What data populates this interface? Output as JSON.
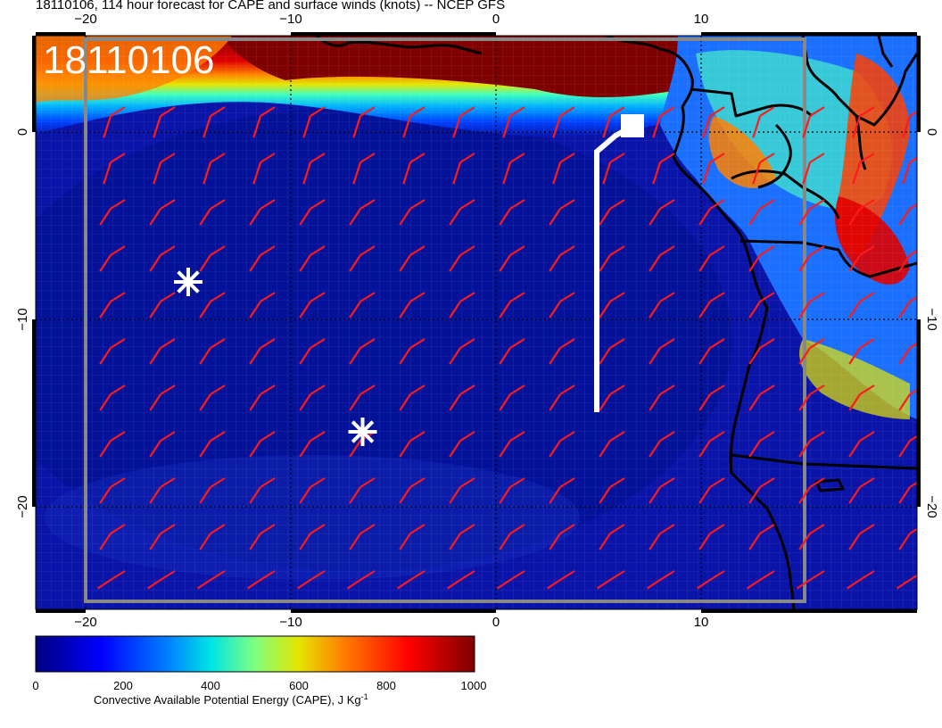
{
  "title": "18110106, 114 hour forecast for CAPE and surface winds (knots) -- NCEP GFS",
  "map_label": "18110106",
  "axes": {
    "lon_ticks_top": [
      "−20",
      "−10",
      "0",
      "10"
    ],
    "lon_ticks_bottom": [
      "−20",
      "−10",
      "0",
      "10"
    ],
    "lat_ticks_left": [
      "0",
      "−10",
      "−20"
    ],
    "lat_ticks_right": [
      "0",
      "−10",
      "−20"
    ]
  },
  "colorbar": {
    "ticks": [
      "0",
      "200",
      "400",
      "600",
      "800",
      "1000"
    ],
    "title": "Convective Available Potential Energy (CAPE), J Kg",
    "title_sup": "-1",
    "colors": [
      "#00007f",
      "#0000ff",
      "#007fff",
      "#00e5e5",
      "#7fff7f",
      "#e5e500",
      "#ff7f00",
      "#ff0000",
      "#7f0000"
    ]
  },
  "colors": {
    "ocean": "#0a14a8",
    "wind_barbs": "#ff1a1a",
    "markers": "#ffffff",
    "track": "#ffffff",
    "coast": "#000000"
  },
  "markers": [
    {
      "name": "asterisk-1",
      "lon": -15,
      "lat": -8
    },
    {
      "name": "asterisk-2",
      "lon": -6.5,
      "lat": -16
    }
  ],
  "track": {
    "lon": 5,
    "lat_start": -0.5,
    "lat_end": -15
  }
}
